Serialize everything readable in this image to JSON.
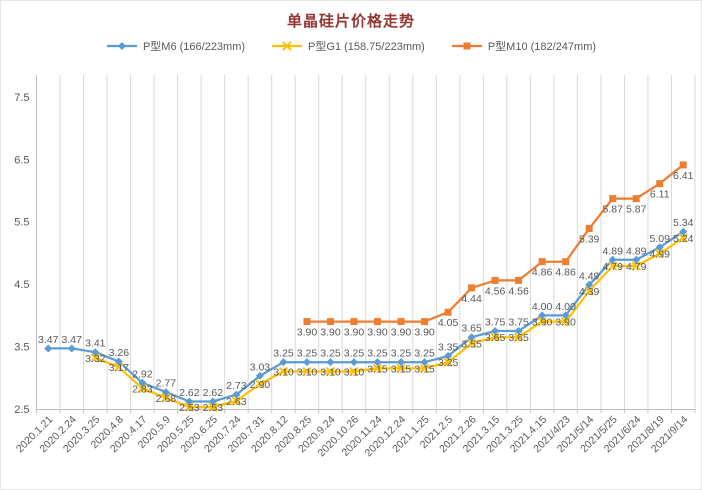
{
  "chart_data": {
    "type": "line",
    "title": "单晶硅片价格走势",
    "title_color": "#943634",
    "legend_position": "top",
    "grid": "vertical-only",
    "grid_color": "#d9d9d9",
    "axis_color": "#bfbfbf",
    "label_color": "#595959",
    "ylim": [
      2.5,
      7.85
    ],
    "y_ticks": [
      "2.5",
      "3.5",
      "4.5",
      "5.5",
      "6.5",
      "7.5"
    ],
    "categories": [
      "2020.1.21",
      "2020.2.24",
      "2020.3.25",
      "2020.4.8",
      "2020.4.17",
      "2020.5.9",
      "2020.5.25",
      "2020.6.25",
      "2020.7.24",
      "2020.7.31",
      "2020.8.12",
      "2020.8.25",
      "2020.9.24",
      "2020.10.26",
      "2020.11.24",
      "2020.12.24",
      "2021.1.25",
      "2021.2.5",
      "2021.2.26",
      "2021.3.15",
      "2021.3.25",
      "2021.4.15",
      "2021/4/23",
      "2021/5/14",
      "2021/5/25",
      "2021/6/24",
      "2021/8/19",
      "2021/9/14"
    ],
    "series": [
      {
        "id": "m6",
        "name": "P型M6 (166/223mm)",
        "color": "#5B9BD5",
        "marker": "diamond",
        "label_position": "above",
        "values": [
          3.47,
          3.47,
          3.41,
          3.26,
          2.92,
          2.77,
          2.62,
          2.62,
          2.73,
          3.03,
          3.25,
          3.25,
          3.25,
          3.25,
          3.25,
          3.25,
          3.25,
          3.35,
          3.65,
          3.75,
          3.75,
          4.0,
          4.0,
          4.49,
          4.89,
          4.89,
          5.09,
          5.34
        ]
      },
      {
        "id": "g1",
        "name": "P型G1 (158.75/223mm)",
        "color": "#FFC000",
        "marker": "x",
        "label_position": "on",
        "values": [
          null,
          null,
          3.32,
          3.17,
          2.83,
          2.68,
          2.53,
          2.53,
          2.63,
          2.9,
          3.1,
          3.1,
          3.1,
          3.1,
          3.15,
          3.15,
          3.15,
          3.25,
          3.55,
          3.65,
          3.65,
          3.9,
          3.9,
          4.39,
          4.79,
          4.79,
          4.99,
          5.24
        ]
      },
      {
        "id": "m10",
        "name": "P型M10 (182/247mm)",
        "color": "#ED7D31",
        "marker": "square",
        "label_position": "below",
        "values": [
          null,
          null,
          null,
          null,
          null,
          null,
          null,
          null,
          null,
          null,
          null,
          3.9,
          3.9,
          3.9,
          3.9,
          3.9,
          3.9,
          4.05,
          4.44,
          4.56,
          4.56,
          4.86,
          4.86,
          5.39,
          5.87,
          5.87,
          6.11,
          6.41
        ]
      }
    ]
  }
}
